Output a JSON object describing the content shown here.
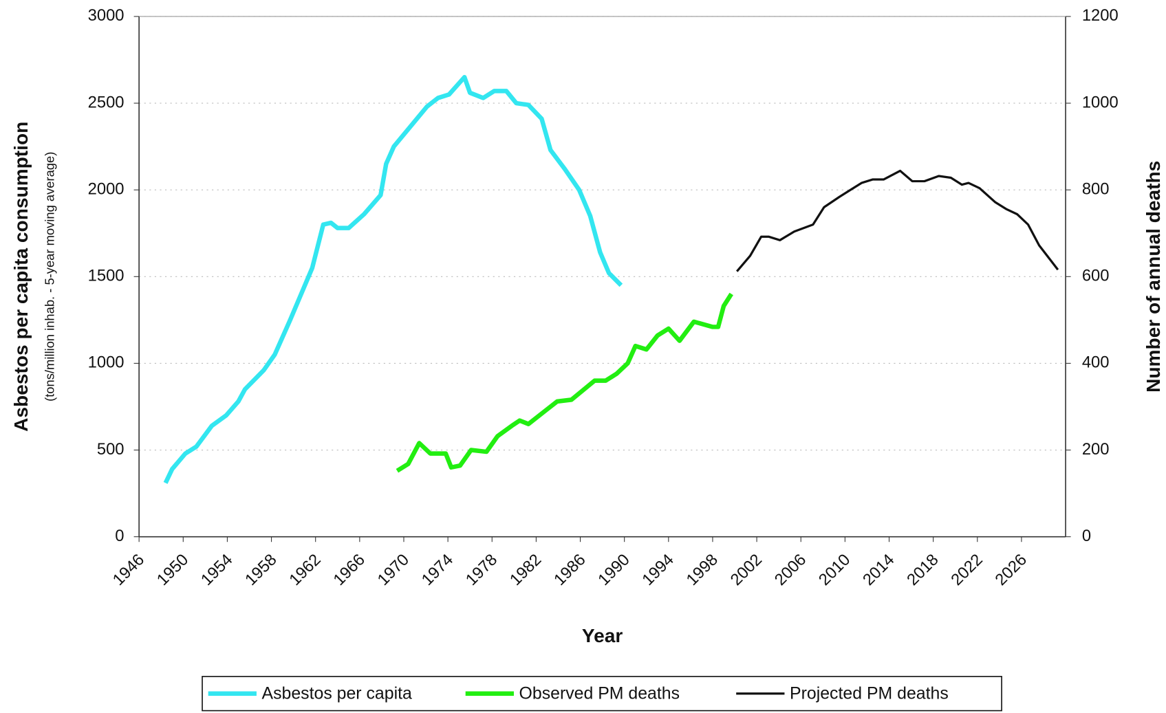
{
  "chart_data": {
    "type": "line",
    "y_title": "Asbestos per capita consumption",
    "y_subtitle": "(tons/million inhab. - 5-year moving average)",
    "y2_title": "Number of annual deaths",
    "x_title": "Year",
    "xlim": [
      1946,
      2030
    ],
    "xticks": [
      1946,
      1950,
      1954,
      1958,
      1962,
      1966,
      1970,
      1974,
      1978,
      1982,
      1986,
      1990,
      1994,
      1998,
      2002,
      2006,
      2010,
      2014,
      2018,
      2022,
      2026
    ],
    "ylim": [
      0,
      3000
    ],
    "yticks": [
      0,
      500,
      1000,
      1500,
      2000,
      2500,
      3000
    ],
    "y2lim": [
      0,
      1200
    ],
    "y2ticks": [
      0,
      200,
      400,
      600,
      800,
      1000,
      1200
    ],
    "grid": true,
    "series": [
      {
        "name": "Asbestos per capita",
        "color": "#33e6f0",
        "axis": "y",
        "x": [
          1948.4,
          1949,
          1950.2,
          1951.2,
          1952.6,
          1953.9,
          1955,
          1955.6,
          1957.3,
          1958.3,
          1959.7,
          1960.7,
          1961.7,
          1962.7,
          1963.4,
          1964,
          1965,
          1966.4,
          1967.9,
          1968.4,
          1969.1,
          1970.4,
          1972.1,
          1973.1,
          1974.1,
          1975.5,
          1976,
          1977.2,
          1978.2,
          1979.3,
          1980.2,
          1981.3,
          1982.5,
          1983.3,
          1984.6,
          1985.9,
          1986.9,
          1987.8,
          1988.6,
          1989.7
        ],
        "values": [
          310,
          390,
          480,
          520,
          640,
          700,
          780,
          850,
          960,
          1050,
          1250,
          1400,
          1550,
          1800,
          1810,
          1780,
          1780,
          1860,
          1970,
          2150,
          2250,
          2350,
          2480,
          2530,
          2550,
          2650,
          2560,
          2530,
          2570,
          2570,
          2500,
          2490,
          2410,
          2230,
          2120,
          2000,
          1850,
          1640,
          1520,
          1450
        ]
      },
      {
        "name": "Observed PM deaths",
        "color": "#22ee11",
        "axis": "y2",
        "x": [
          1969.4,
          1970.4,
          1971.4,
          1972.4,
          1973.8,
          1974.3,
          1975.1,
          1976.1,
          1977.5,
          1978.5,
          1979.8,
          1980.5,
          1981.3,
          1982.9,
          1983.9,
          1985.2,
          1987.3,
          1988.3,
          1989.3,
          1990.3,
          1991,
          1992,
          1993,
          1994,
          1995,
          1996.3,
          1998,
          1998.5,
          1999,
          1999.7
        ],
        "values": [
          152,
          168,
          216,
          192,
          192,
          160,
          164,
          200,
          196,
          232,
          256,
          268,
          260,
          292,
          312,
          316,
          360,
          360,
          376,
          400,
          440,
          432,
          464,
          480,
          452,
          496,
          484,
          484,
          532,
          560
        ]
      },
      {
        "name": "Projected PM deaths",
        "color": "#111111",
        "axis": "y2",
        "x": [
          2000.2,
          2001.4,
          2002.4,
          2003.1,
          2004.1,
          2005.4,
          2007.1,
          2008.1,
          2009.5,
          2010.5,
          2011.5,
          2012.5,
          2013.5,
          2015,
          2016.1,
          2017.2,
          2018.5,
          2019.6,
          2020.6,
          2021.2,
          2022.2,
          2023.6,
          2024.6,
          2025.6,
          2026.6,
          2027.6,
          2029.3
        ],
        "values": [
          612,
          648,
          692,
          692,
          684,
          704,
          720,
          760,
          784,
          800,
          816,
          824,
          824,
          844,
          820,
          820,
          832,
          828,
          812,
          816,
          804,
          772,
          756,
          744,
          720,
          672,
          616
        ]
      }
    ]
  }
}
